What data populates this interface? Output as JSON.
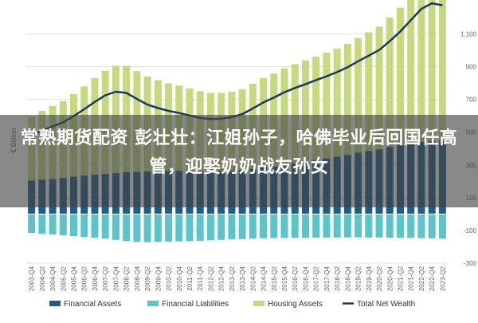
{
  "overlay": {
    "headline": "常熟期货配资 彭壮壮：江姐孙子，哈佛毕业后回国任高管，迎娶奶奶战友孙女"
  },
  "chart_data": {
    "type": "bar",
    "title": "",
    "ylabel": "€ Billion",
    "ylim": [
      -300,
      1200
    ],
    "yticks": [
      -300,
      -100,
      100,
      300,
      500,
      700,
      900,
      1100
    ],
    "ytick_labels": [
      "-300",
      "-100",
      "100",
      "300",
      "500",
      "700",
      "900",
      "1,100"
    ],
    "grid": true,
    "legend_position": "bottom",
    "categories": [
      "2003-Q4",
      "2004-Q2",
      "2004-Q4",
      "2005-Q2",
      "2005-Q4",
      "2006-Q2",
      "2006-Q4",
      "2007-Q2",
      "2007-Q4",
      "2008-Q2",
      "2008-Q4",
      "2009-Q2",
      "2009-Q4",
      "2010-Q2",
      "2010-Q4",
      "2011-Q2",
      "2011-Q4",
      "2012-Q2",
      "2012-Q4",
      "2013-Q2",
      "2013-Q4",
      "2014-Q2",
      "2014-Q4",
      "2015-Q2",
      "2015-Q4",
      "2016-Q2",
      "2016-Q4",
      "2017-Q2",
      "2017-Q4",
      "2018-Q2",
      "2018-Q4",
      "2019-Q2",
      "2019-Q4",
      "2020-Q2",
      "2020-Q4",
      "2021-Q2",
      "2021-Q4",
      "2022-Q2",
      "2022-Q4",
      "2023-Q2"
    ],
    "series": [
      {
        "name": "Financial Assets",
        "kind": "bar",
        "color": "#1f5c86",
        "values": [
          205,
          210,
          215,
          220,
          228,
          235,
          240,
          245,
          250,
          255,
          258,
          260,
          262,
          263,
          264,
          262,
          260,
          260,
          262,
          265,
          268,
          275,
          285,
          290,
          300,
          310,
          320,
          330,
          340,
          350,
          360,
          375,
          385,
          395,
          410,
          420,
          430,
          440,
          445,
          450
        ]
      },
      {
        "name": "Financial Liabilities",
        "kind": "bar",
        "color": "#5bc4c9",
        "values": [
          -115,
          -120,
          -125,
          -130,
          -135,
          -140,
          -145,
          -150,
          -158,
          -165,
          -170,
          -172,
          -170,
          -168,
          -167,
          -165,
          -163,
          -160,
          -158,
          -155,
          -153,
          -150,
          -148,
          -147,
          -146,
          -145,
          -145,
          -144,
          -144,
          -143,
          -143,
          -142,
          -143,
          -143,
          -144,
          -145,
          -146,
          -147,
          -148,
          -150
        ]
      },
      {
        "name": "Housing Assets",
        "kind": "bar",
        "color": "#c7d97e",
        "values": [
          390,
          420,
          445,
          470,
          505,
          545,
          590,
          630,
          655,
          650,
          615,
          580,
          555,
          535,
          520,
          505,
          490,
          480,
          478,
          482,
          495,
          520,
          545,
          568,
          590,
          605,
          618,
          632,
          645,
          660,
          680,
          700,
          725,
          750,
          790,
          840,
          900,
          960,
          990,
          975
        ]
      },
      {
        "name": "Total Net Wealth",
        "kind": "line",
        "color": "#1b3a57",
        "values": [
          480,
          510,
          535,
          560,
          598,
          640,
          685,
          725,
          747,
          740,
          703,
          668,
          647,
          630,
          617,
          602,
          587,
          580,
          582,
          592,
          610,
          645,
          682,
          711,
          744,
          770,
          793,
          818,
          841,
          867,
          897,
          933,
          967,
          1002,
          1056,
          1115,
          1184,
          1253,
          1287,
          1275
        ]
      }
    ]
  }
}
